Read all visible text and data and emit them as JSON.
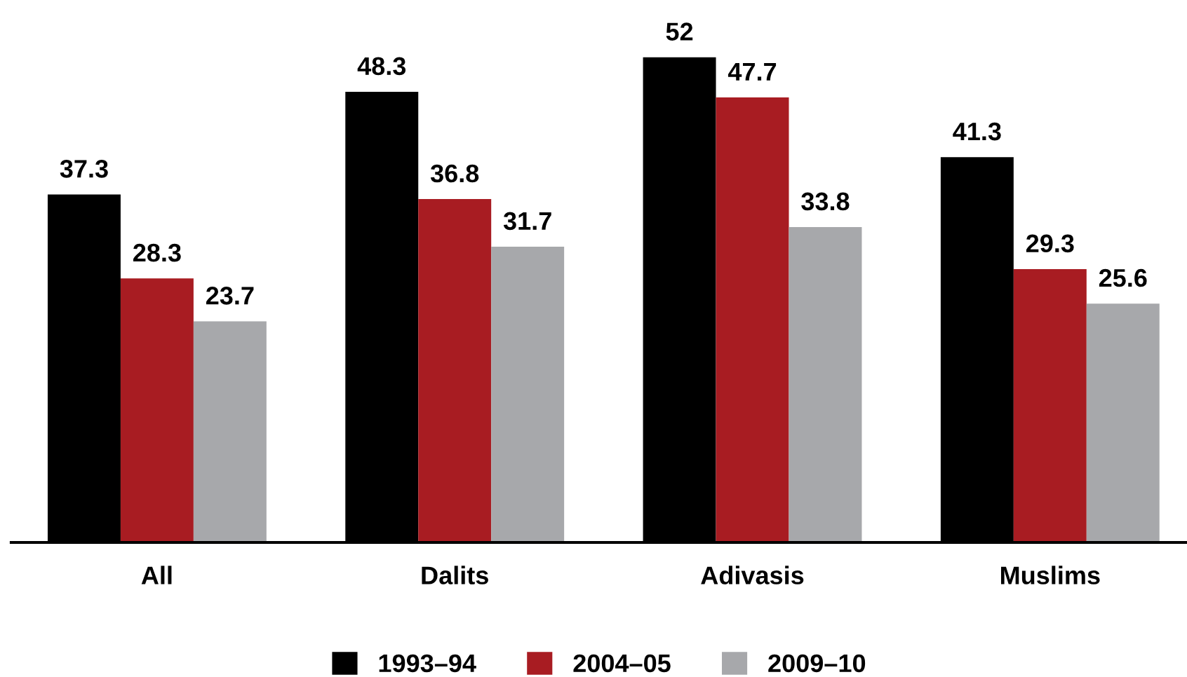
{
  "chart_data": {
    "type": "bar",
    "categories": [
      "All",
      "Dalits",
      "Adivasis",
      "Muslims"
    ],
    "series": [
      {
        "name": "1993–94",
        "color": "#000000",
        "values": [
          37.3,
          48.3,
          52,
          41.3
        ]
      },
      {
        "name": "2004–05",
        "color": "#a81c22",
        "values": [
          28.3,
          36.8,
          47.7,
          29.3
        ]
      },
      {
        "name": "2009–10",
        "color": "#a7a8ab",
        "values": [
          23.7,
          31.7,
          33.8,
          25.6
        ]
      }
    ],
    "data_labels": true,
    "legend": "bottom",
    "grid": false
  }
}
